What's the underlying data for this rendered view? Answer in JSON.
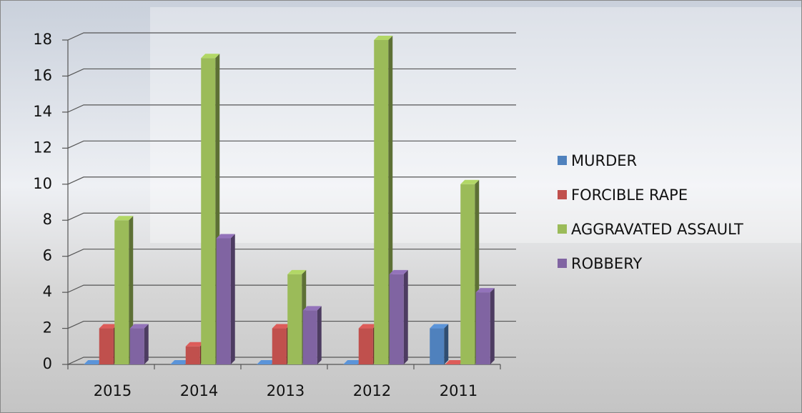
{
  "chart_data": {
    "type": "bar3d",
    "categories": [
      "2015",
      "2014",
      "2013",
      "2012",
      "2011"
    ],
    "series": [
      {
        "name": "MURDER",
        "color": "#4f81bd",
        "values": [
          0,
          0,
          0,
          0,
          2
        ]
      },
      {
        "name": "FORCIBLE RAPE",
        "color": "#c0504d",
        "values": [
          2,
          1,
          2,
          2,
          0
        ]
      },
      {
        "name": "AGGRAVATED ASSAULT",
        "color": "#9bbb59",
        "values": [
          8,
          17,
          5,
          18,
          10
        ]
      },
      {
        "name": "ROBBERY",
        "color": "#8064a2",
        "values": [
          2,
          7,
          3,
          5,
          4
        ]
      }
    ],
    "ylim": [
      0,
      18
    ],
    "yticks": [
      0,
      2,
      4,
      6,
      8,
      10,
      12,
      14,
      16,
      18
    ],
    "grid": true,
    "legend": "right"
  }
}
